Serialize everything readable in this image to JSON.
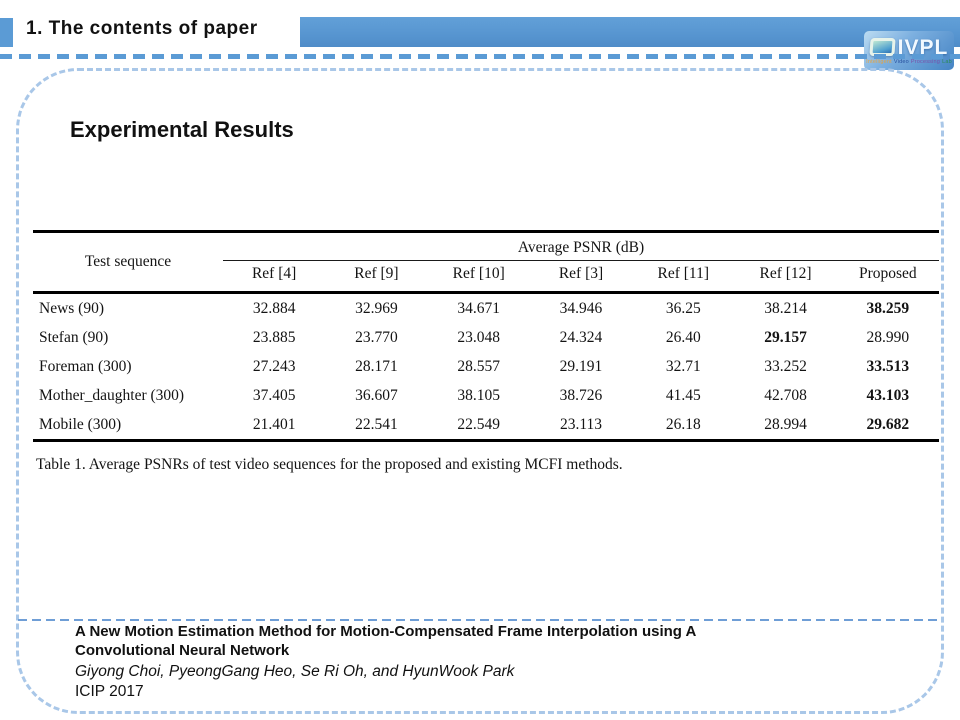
{
  "header": {
    "title": "1. The contents of paper",
    "logo": {
      "text": "IVPL",
      "subtext_words": [
        {
          "text": "Intelligent",
          "color": "#e8a33d"
        },
        {
          "text": "Video",
          "color": "#274f9e"
        },
        {
          "text": "Processing",
          "color": "#7a4fa8"
        },
        {
          "text": "Lab",
          "color": "#2b8a57"
        }
      ]
    }
  },
  "slide": {
    "heading": "Experimental Results",
    "table": {
      "row_header": "Test sequence",
      "group_header": "Average PSNR (dB)",
      "columns": [
        "Ref [4]",
        "Ref [9]",
        "Ref [10]",
        "Ref [3]",
        "Ref [11]",
        "Ref [12]",
        "Proposed"
      ],
      "rows": [
        {
          "name": "News (90)",
          "values": [
            "32.884",
            "32.969",
            "34.671",
            "34.946",
            "36.25",
            "38.214",
            "38.259"
          ],
          "bold_index": 6
        },
        {
          "name": "Stefan (90)",
          "values": [
            "23.885",
            "23.770",
            "23.048",
            "24.324",
            "26.40",
            "29.157",
            "28.990"
          ],
          "bold_index": 5
        },
        {
          "name": "Foreman (300)",
          "values": [
            "27.243",
            "28.171",
            "28.557",
            "29.191",
            "32.71",
            "33.252",
            "33.513"
          ],
          "bold_index": 6
        },
        {
          "name": "Mother_daughter (300)",
          "values": [
            "37.405",
            "36.607",
            "38.105",
            "38.726",
            "41.45",
            "42.708",
            "43.103"
          ],
          "bold_index": 6
        },
        {
          "name": "Mobile (300)",
          "values": [
            "21.401",
            "22.541",
            "22.549",
            "23.113",
            "26.18",
            "28.994",
            "29.682"
          ],
          "bold_index": 6
        }
      ],
      "caption": "Table 1. Average PSNRs of test video sequences for the proposed and existing MCFI methods."
    },
    "footer": {
      "paper_title": "A New Motion Estimation Method for Motion-Compensated Frame Interpolation using A Convolutional Neural Network",
      "authors": "Giyong Choi, PyeongGang Heo, Se Ri Oh, and HyunWook Park",
      "conference": "ICIP 2017"
    }
  },
  "colors": {
    "accent_blue": "#5b9bd5",
    "panel_border_blue": "#a9c7e8",
    "divider_blue": "#6f9ed6",
    "table_line": "#000000"
  }
}
